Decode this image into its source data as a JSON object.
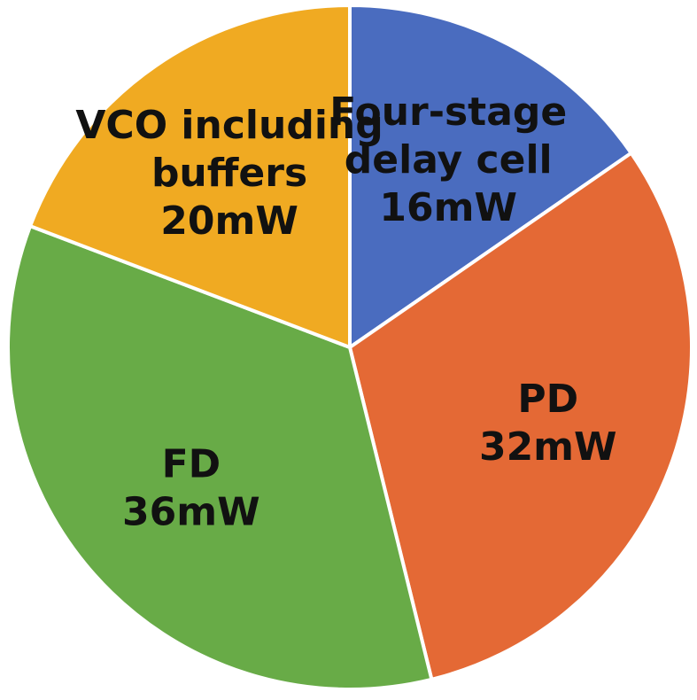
{
  "chart_data": {
    "type": "pie",
    "unit": "mW",
    "slices": [
      {
        "label_lines": [
          "Four-stage",
          "delay cell"
        ],
        "value_text": "16mW",
        "value": 16,
        "color": "#4a6cbf"
      },
      {
        "label_lines": [
          "PD"
        ],
        "value_text": "32mW",
        "value": 32,
        "color": "#e46935"
      },
      {
        "label_lines": [
          "FD"
        ],
        "value_text": "36mW",
        "value": 36,
        "color": "#68ab47"
      },
      {
        "label_lines": [
          "VCO including",
          "buffers"
        ],
        "value_text": "20mW",
        "value": 20,
        "color": "#f0aa22"
      }
    ]
  }
}
